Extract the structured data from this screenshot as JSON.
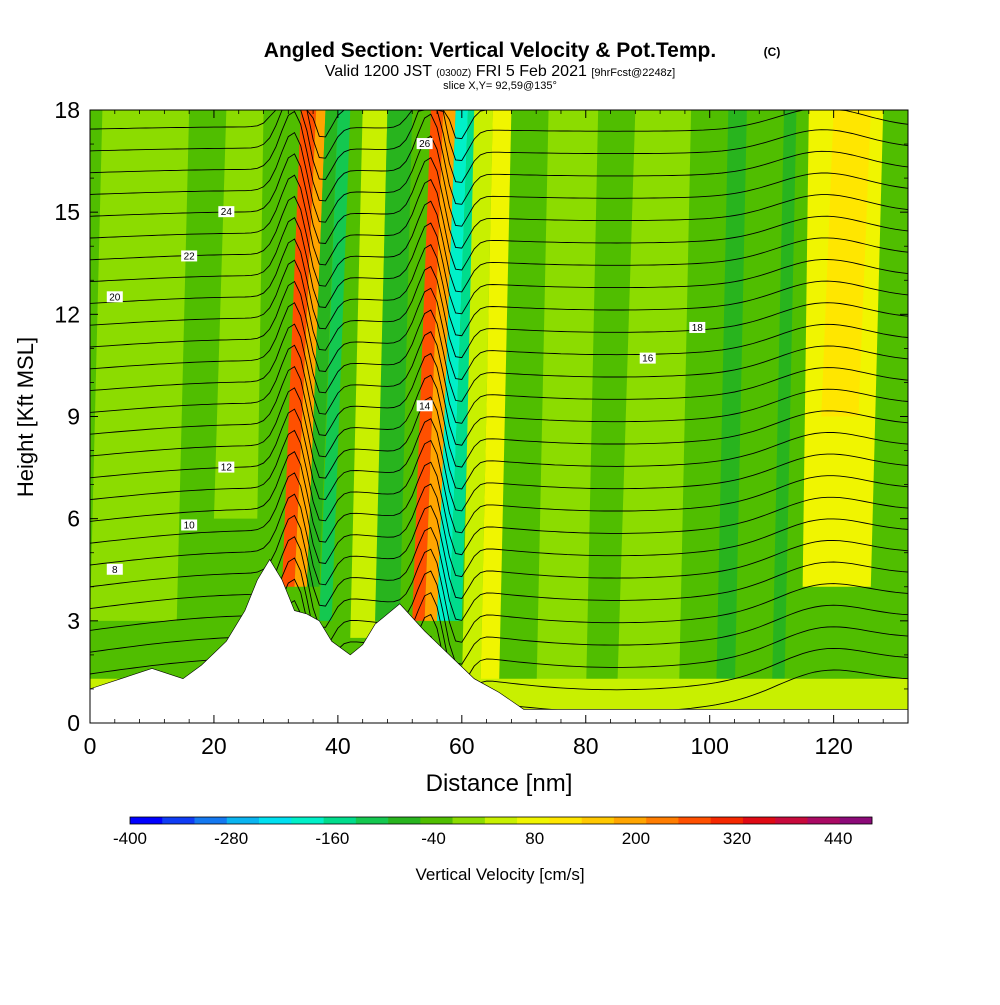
{
  "chart_data": {
    "type": "heatmap",
    "title": "Angled Section: Vertical Velocity & Pot.Temp.",
    "title_unit": "(C)",
    "subtitle_prefix": "Valid 1200 JST",
    "subtitle_zulu": "(0300Z)",
    "subtitle_date": "FRI 5 Feb 2021",
    "subtitle_fcst": "[9hrFcst@2248z]",
    "slice_label": "slice X,Y= 92,59@135°",
    "xlabel": "Distance [nm]",
    "ylabel": "Height [Kft MSL]",
    "xlim": [
      0,
      132
    ],
    "ylim": [
      0,
      18
    ],
    "xticks": [
      0,
      20,
      40,
      60,
      80,
      100,
      120
    ],
    "yticks": [
      0,
      3,
      6,
      9,
      12,
      15,
      18
    ],
    "grid": false,
    "colorbar": {
      "label": "Vertical Velocity [cm/s]",
      "min": -400,
      "max": 480,
      "step": 40,
      "tick_labels": [
        -400,
        -280,
        -160,
        -40,
        80,
        200,
        320,
        440
      ],
      "colors": [
        "#0000ff",
        "#0f3cf5",
        "#1478f0",
        "#0ab4f0",
        "#00e0f0",
        "#00f0c8",
        "#00dc8c",
        "#14c850",
        "#28b41e",
        "#50be00",
        "#8cdc00",
        "#c8f000",
        "#f0f500",
        "#ffe600",
        "#ffc800",
        "#ffa500",
        "#ff7d00",
        "#ff5000",
        "#f52800",
        "#e00a14",
        "#c80a3c",
        "#aa0a64",
        "#8c0a78"
      ]
    },
    "terrain_top_kft": [
      [
        0,
        1.0
      ],
      [
        5,
        1.3
      ],
      [
        10,
        1.6
      ],
      [
        15,
        1.3
      ],
      [
        18,
        1.7
      ],
      [
        22,
        2.4
      ],
      [
        25,
        3.3
      ],
      [
        27,
        4.2
      ],
      [
        29,
        4.8
      ],
      [
        31,
        4.2
      ],
      [
        33,
        3.3
      ],
      [
        35,
        3.2
      ],
      [
        37,
        3.0
      ],
      [
        39,
        2.4
      ],
      [
        42,
        2.0
      ],
      [
        44,
        2.3
      ],
      [
        46,
        2.9
      ],
      [
        50,
        3.5
      ],
      [
        54,
        2.7
      ],
      [
        58,
        2.0
      ],
      [
        62,
        1.3
      ],
      [
        66,
        0.9
      ],
      [
        70,
        0.4
      ],
      [
        80,
        0.4
      ],
      [
        100,
        0.4
      ],
      [
        120,
        0.4
      ],
      [
        132,
        0.4
      ]
    ],
    "isentropes_label": "Potential Temperature (C)",
    "isentrope_levels": [
      8,
      10,
      12,
      14,
      16,
      18,
      20,
      22,
      24,
      26
    ]
  }
}
